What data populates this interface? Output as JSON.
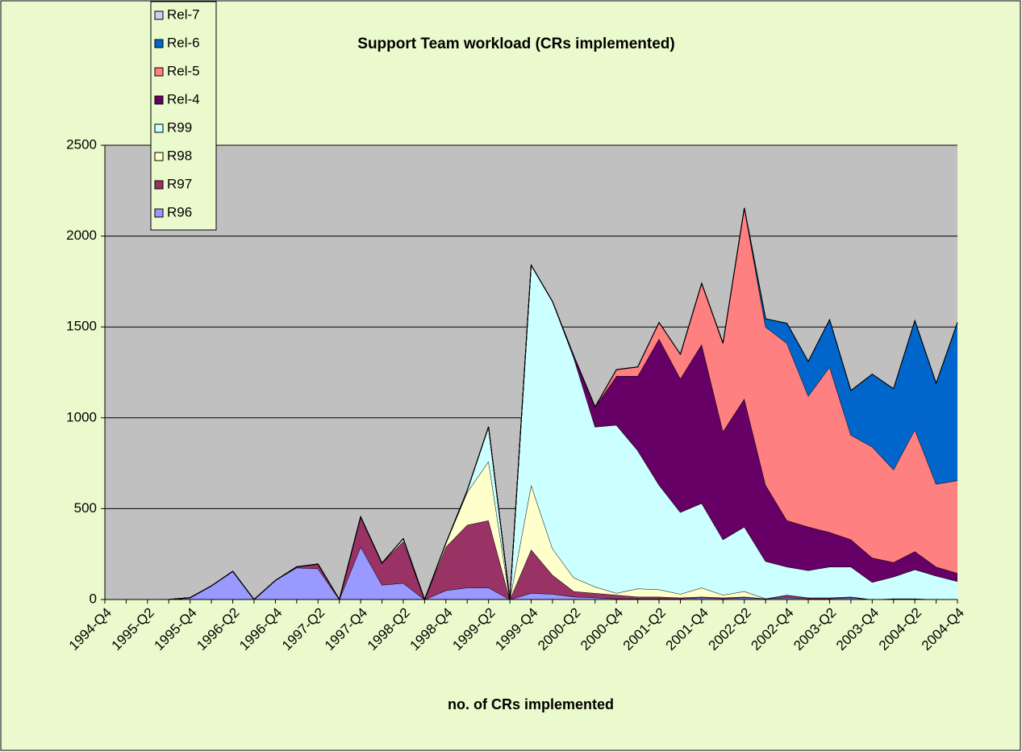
{
  "chart_data": {
    "type": "stacked-area",
    "title": "Support Team workload (CRs implemented)",
    "x_label": "no. of CRs implemented",
    "categories": [
      "1994-Q4",
      null,
      "1995-Q2",
      null,
      "1995-Q4",
      null,
      "1996-Q2",
      null,
      "1996-Q4",
      null,
      "1997-Q2",
      null,
      "1997-Q4",
      null,
      "1998-Q2",
      null,
      "1998-Q4",
      null,
      "1999-Q2",
      null,
      "1999-Q4",
      null,
      "2000-Q2",
      null,
      "2000-Q4",
      null,
      "2001-Q2",
      null,
      "2001-Q4",
      null,
      "2002-Q2",
      null,
      "2002-Q4",
      null,
      "2003-Q2",
      null,
      "2003-Q4",
      null,
      "2004-Q2",
      null,
      "2004-Q4"
    ],
    "series": [
      {
        "name": "R96",
        "color": "#9999ff",
        "values": [
          0,
          0,
          0,
          0,
          10,
          75,
          155,
          0,
          105,
          175,
          170,
          0,
          290,
          80,
          90,
          0,
          50,
          65,
          65,
          0,
          35,
          30,
          15,
          10,
          5,
          5,
          5,
          5,
          10,
          5,
          10,
          5,
          10,
          5,
          5,
          10,
          0,
          5,
          5,
          0,
          0
        ]
      },
      {
        "name": "R97",
        "color": "#993366",
        "values": [
          0,
          0,
          0,
          0,
          0,
          0,
          0,
          0,
          0,
          5,
          25,
          0,
          165,
          120,
          230,
          0,
          240,
          345,
          370,
          0,
          240,
          105,
          30,
          25,
          20,
          10,
          10,
          5,
          5,
          5,
          5,
          0,
          15,
          5,
          5,
          5,
          0,
          0,
          0,
          0,
          0
        ]
      },
      {
        "name": "R98",
        "color": "#ffffcc",
        "values": [
          0,
          0,
          0,
          0,
          0,
          0,
          0,
          0,
          0,
          0,
          0,
          0,
          0,
          0,
          15,
          0,
          20,
          180,
          325,
          0,
          355,
          145,
          75,
          35,
          10,
          45,
          40,
          20,
          50,
          15,
          30,
          0,
          0,
          0,
          0,
          0,
          0,
          0,
          0,
          0,
          0
        ]
      },
      {
        "name": "R99",
        "color": "#ccffff",
        "values": [
          0,
          0,
          0,
          0,
          0,
          0,
          0,
          0,
          0,
          0,
          0,
          0,
          0,
          0,
          0,
          0,
          0,
          10,
          190,
          0,
          1210,
          1360,
          1210,
          880,
          925,
          760,
          575,
          450,
          465,
          305,
          355,
          205,
          155,
          150,
          170,
          165,
          95,
          120,
          160,
          130,
          100
        ]
      },
      {
        "name": "Rel-4",
        "color": "#660066",
        "values": [
          0,
          0,
          0,
          0,
          0,
          0,
          0,
          0,
          0,
          0,
          0,
          0,
          0,
          0,
          0,
          0,
          0,
          0,
          0,
          0,
          0,
          0,
          10,
          110,
          270,
          410,
          805,
          735,
          875,
          595,
          705,
          420,
          255,
          240,
          190,
          150,
          135,
          80,
          100,
          50,
          45
        ]
      },
      {
        "name": "Rel-5",
        "color": "#ff8080",
        "values": [
          0,
          0,
          0,
          0,
          0,
          0,
          0,
          0,
          0,
          0,
          0,
          0,
          0,
          0,
          0,
          0,
          0,
          0,
          0,
          0,
          0,
          0,
          0,
          0,
          35,
          50,
          90,
          135,
          335,
          485,
          1050,
          870,
          975,
          720,
          910,
          575,
          610,
          510,
          670,
          455,
          510
        ]
      },
      {
        "name": "Rel-6",
        "color": "#0066cc",
        "values": [
          0,
          0,
          0,
          0,
          0,
          0,
          0,
          0,
          0,
          0,
          0,
          0,
          0,
          0,
          0,
          0,
          0,
          0,
          0,
          0,
          0,
          0,
          0,
          0,
          0,
          0,
          0,
          0,
          0,
          0,
          0,
          45,
          110,
          190,
          260,
          245,
          400,
          445,
          600,
          555,
          870
        ]
      },
      {
        "name": "Rel-7",
        "color": "#ccccff",
        "values": [
          0,
          0,
          0,
          0,
          0,
          0,
          0,
          0,
          0,
          0,
          0,
          0,
          0,
          0,
          0,
          0,
          0,
          0,
          0,
          0,
          0,
          0,
          0,
          0,
          0,
          0,
          0,
          0,
          0,
          0,
          0,
          0,
          0,
          0,
          0,
          0,
          0,
          0,
          0,
          0,
          0
        ]
      }
    ],
    "ylim": [
      0,
      2500
    ],
    "yticks": [
      0,
      500,
      1000,
      1500,
      2000,
      2500
    ],
    "grid": true,
    "legend": "top-left"
  }
}
